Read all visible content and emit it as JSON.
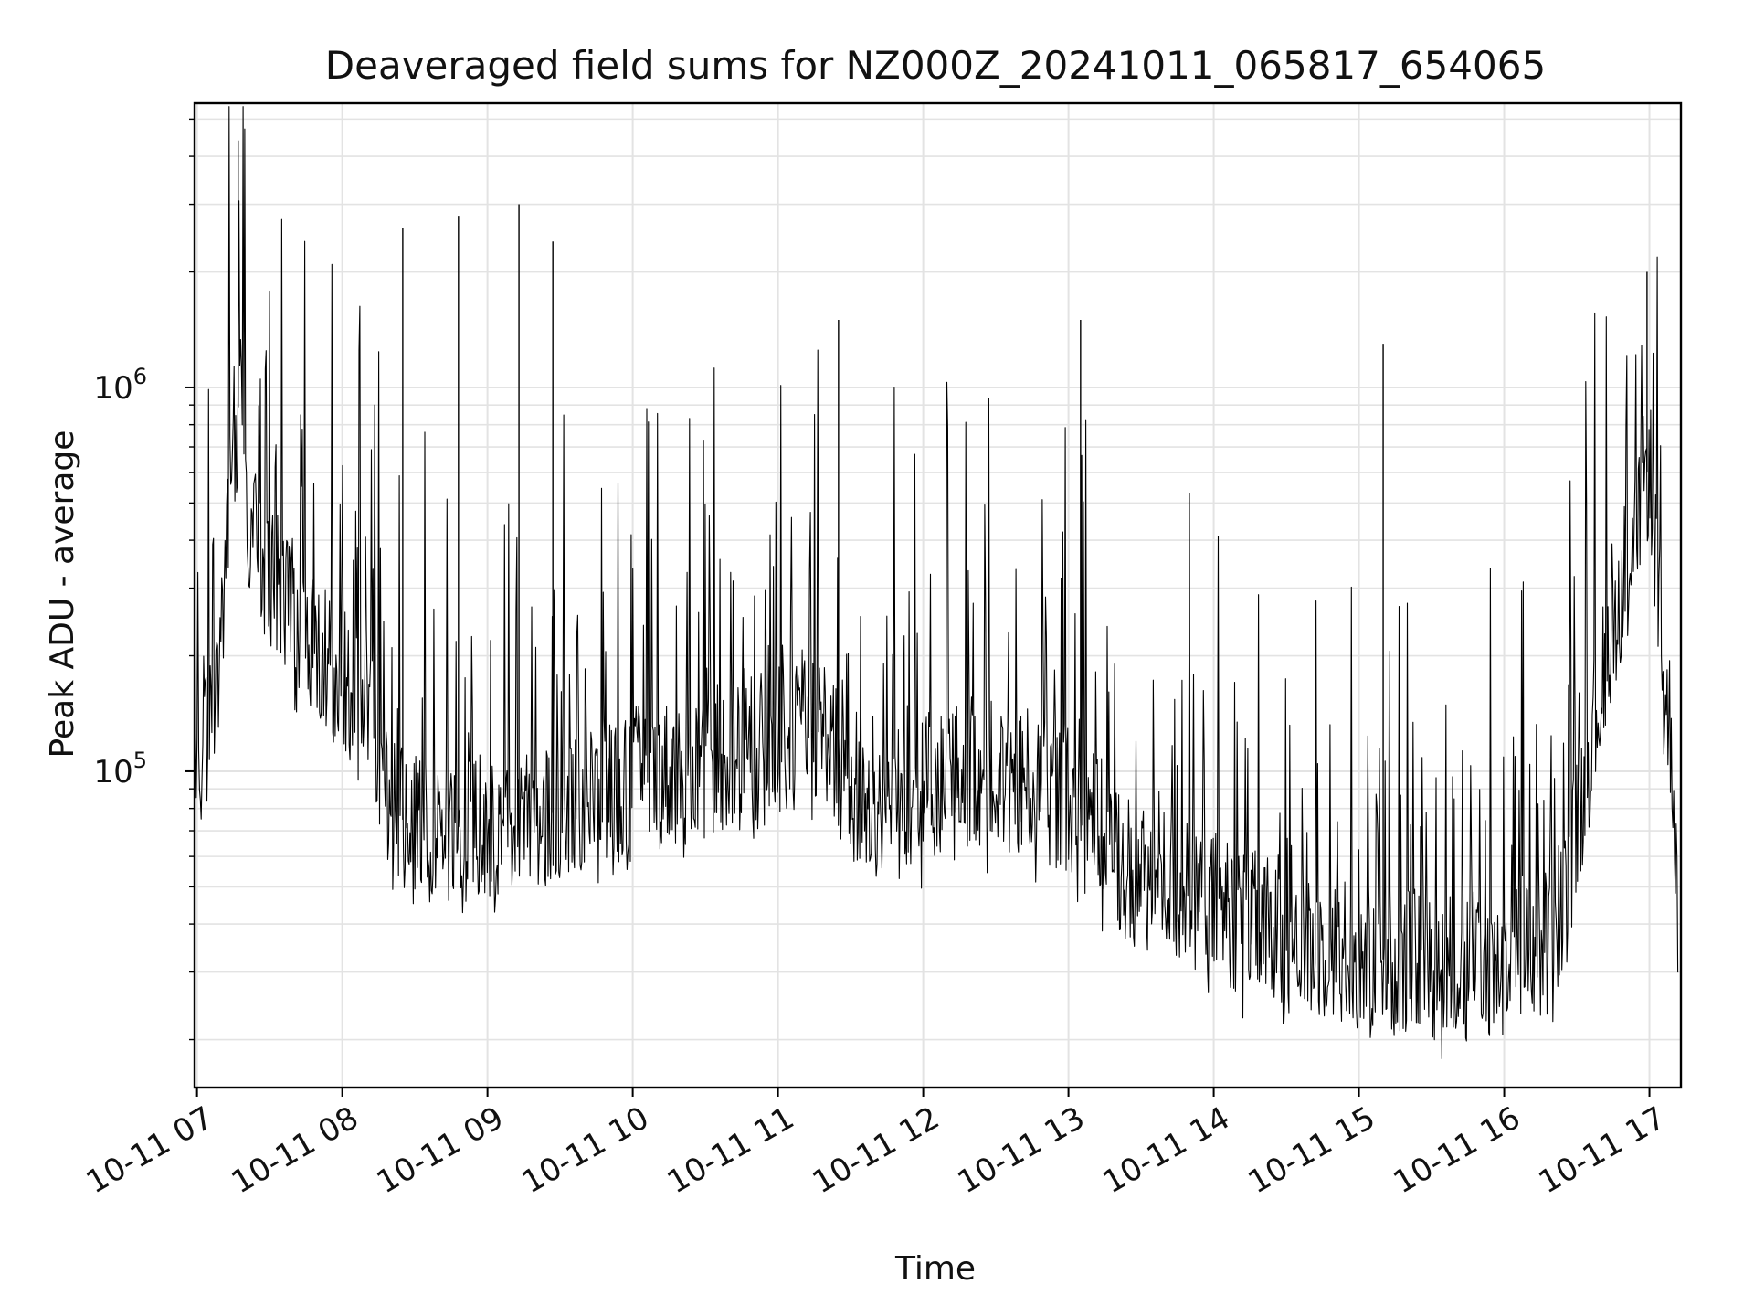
{
  "chart_data": {
    "type": "line",
    "title": "Deaveraged field sums for NZ000Z_20241011_065817_654065",
    "xlabel": "Time",
    "ylabel": "Peak ADU - average",
    "yscale": "log",
    "ylim": [
      15000,
      5500000
    ],
    "xlim": [
      "2024-10-11T06:59",
      "2024-10-11T17:13"
    ],
    "grid": true,
    "line_color": "#000000",
    "grid_color": "#e3e3e3",
    "y_ticks": [
      {
        "base": "10",
        "exp": "5",
        "value": 100000
      },
      {
        "base": "10",
        "exp": "6",
        "value": 1000000
      }
    ],
    "x_ticks": [
      {
        "label": "10-11 07",
        "value": "2024-10-11T07:00"
      },
      {
        "label": "10-11 08",
        "value": "2024-10-11T08:00"
      },
      {
        "label": "10-11 09",
        "value": "2024-10-11T09:00"
      },
      {
        "label": "10-11 10",
        "value": "2024-10-11T10:00"
      },
      {
        "label": "10-11 11",
        "value": "2024-10-11T11:00"
      },
      {
        "label": "10-11 12",
        "value": "2024-10-11T12:00"
      },
      {
        "label": "10-11 13",
        "value": "2024-10-11T13:00"
      },
      {
        "label": "10-11 14",
        "value": "2024-10-11T14:00"
      },
      {
        "label": "10-11 15",
        "value": "2024-10-11T15:00"
      },
      {
        "label": "10-11 16",
        "value": "2024-10-11T16:00"
      },
      {
        "label": "10-11 17",
        "value": "2024-10-11T17:00"
      }
    ],
    "series": [
      {
        "x": [
          "2024-10-11T06:59",
          "2024-10-11T07:05",
          "2024-10-11T07:10",
          "2024-10-11T07:15",
          "2024-10-11T07:18",
          "2024-10-11T07:20",
          "2024-10-11T07:25",
          "2024-10-11T07:30",
          "2024-10-11T07:40",
          "2024-10-11T07:50",
          "2024-10-11T08:00",
          "2024-10-11T08:10",
          "2024-10-11T08:15",
          "2024-10-11T08:20",
          "2024-10-11T08:30",
          "2024-10-11T08:40",
          "2024-10-11T08:50",
          "2024-10-11T09:00",
          "2024-10-11T09:15",
          "2024-10-11T09:30",
          "2024-10-11T09:45",
          "2024-10-11T10:00",
          "2024-10-11T10:20",
          "2024-10-11T10:40",
          "2024-10-11T11:00",
          "2024-10-11T11:20",
          "2024-10-11T11:30",
          "2024-10-11T11:40",
          "2024-10-11T12:00",
          "2024-10-11T12:20",
          "2024-10-11T12:40",
          "2024-10-11T13:00",
          "2024-10-11T13:10",
          "2024-10-11T13:20",
          "2024-10-11T13:30",
          "2024-10-11T13:45",
          "2024-10-11T14:00",
          "2024-10-11T14:15",
          "2024-10-11T14:30",
          "2024-10-11T14:45",
          "2024-10-11T15:00",
          "2024-10-11T15:15",
          "2024-10-11T15:30",
          "2024-10-11T15:45",
          "2024-10-11T16:00",
          "2024-10-11T16:15",
          "2024-10-11T16:25",
          "2024-10-11T16:35",
          "2024-10-11T16:45",
          "2024-10-11T16:55",
          "2024-10-11T17:00",
          "2024-10-11T17:03",
          "2024-10-11T17:06",
          "2024-10-11T17:09",
          "2024-10-11T17:12"
        ],
        "y": [
          90000,
          120000,
          220000,
          700000,
          1000000,
          500000,
          380000,
          330000,
          260000,
          210000,
          170000,
          150000,
          110000,
          80000,
          70000,
          70000,
          72000,
          70000,
          70000,
          80000,
          85000,
          95000,
          100000,
          110000,
          120000,
          130000,
          80000,
          80000,
          90000,
          100000,
          95000,
          85000,
          75000,
          60000,
          55000,
          50000,
          45000,
          40000,
          37000,
          35000,
          33000,
          32000,
          31000,
          31000,
          32000,
          35000,
          45000,
          110000,
          250000,
          450000,
          650000,
          350000,
          150000,
          130000,
          40000
        ]
      }
    ],
    "spikes": [
      {
        "x": "2024-10-11T07:17",
        "y": 4400000
      },
      {
        "x": "2024-10-11T08:25",
        "y": 2600000
      },
      {
        "x": "2024-10-11T08:48",
        "y": 2800000
      },
      {
        "x": "2024-10-11T09:13",
        "y": 3000000
      },
      {
        "x": "2024-10-11T09:27",
        "y": 2400000
      },
      {
        "x": "2024-10-11T11:25",
        "y": 1500000
      },
      {
        "x": "2024-10-11T13:05",
        "y": 1500000
      },
      {
        "x": "2024-10-11T15:10",
        "y": 1300000
      },
      {
        "x": "2024-10-11T16:59",
        "y": 2000000
      }
    ]
  }
}
